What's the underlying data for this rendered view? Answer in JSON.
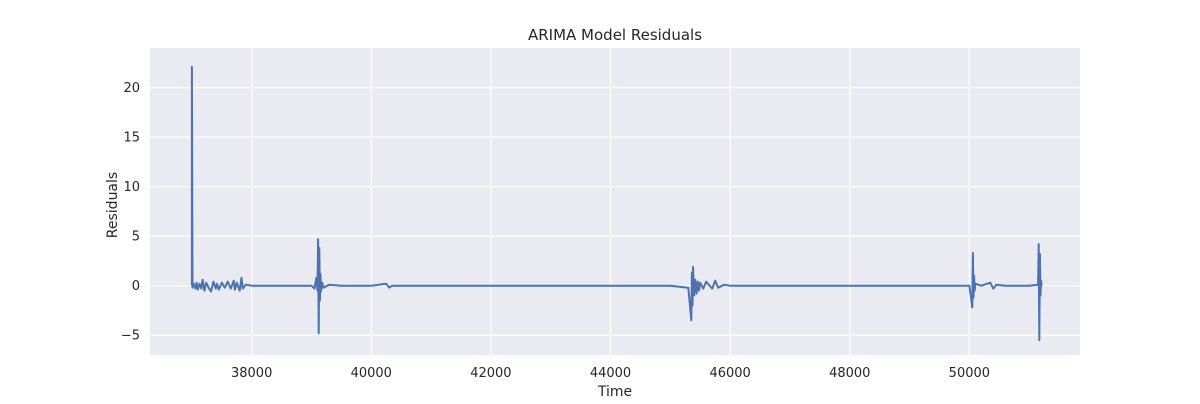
{
  "chart_data": {
    "type": "line",
    "title": "ARIMA Model Residuals",
    "xlabel": "Time",
    "ylabel": "Residuals",
    "xlim": [
      36300,
      51850
    ],
    "ylim": [
      -7,
      24
    ],
    "xticks": [
      38000,
      40000,
      42000,
      44000,
      46000,
      48000,
      50000
    ],
    "yticks": [
      -5,
      0,
      5,
      10,
      15,
      20
    ],
    "grid": true,
    "colors": {
      "background": "#eaeaf2",
      "grid": "#ffffff",
      "line": "#4c72b0"
    },
    "series": [
      {
        "x": [
          37000,
          37000,
          37010,
          37030,
          37060,
          37080,
          37100,
          37130,
          37160,
          37180,
          37210,
          37240,
          37280,
          37320,
          37360,
          37400,
          37420,
          37450,
          37500,
          37550,
          37600,
          37650,
          37700,
          37720,
          37750,
          37800,
          37830,
          37850,
          37900,
          38000,
          38500,
          39000,
          39050,
          39080,
          39100,
          39110,
          39120,
          39130,
          39140,
          39150,
          39160,
          39180,
          39200,
          39300,
          39500,
          40000,
          40250,
          40300,
          40350,
          41000,
          42000,
          43000,
          44000,
          45000,
          45300,
          45350,
          45360,
          45370,
          45380,
          45400,
          45420,
          45440,
          45460,
          45480,
          45500,
          45550,
          45600,
          45700,
          45750,
          45800,
          45900,
          46000,
          47000,
          48000,
          49000,
          50000,
          50050,
          50060,
          50070,
          50080,
          50090,
          50100,
          50200,
          50350,
          50400,
          50450,
          50600,
          51000,
          51150,
          51160,
          51170,
          51180,
          51190,
          51200,
          51210
        ],
        "y": [
          0,
          22.1,
          -0.2,
          0.2,
          -0.3,
          0.3,
          -0.4,
          0.2,
          -0.3,
          0.6,
          -0.5,
          0.3,
          -0.2,
          -0.6,
          0.4,
          -0.3,
          0.2,
          -0.4,
          0.3,
          -0.2,
          0.4,
          -0.3,
          0.5,
          -0.4,
          0.3,
          -0.5,
          0.8,
          -0.3,
          0.1,
          0,
          0,
          0,
          -0.3,
          0.8,
          -0.5,
          4.7,
          -4.8,
          3.8,
          -1.5,
          1.2,
          -0.6,
          0.3,
          -0.2,
          0.1,
          0,
          0,
          0.2,
          -0.2,
          0,
          0,
          0,
          0,
          0,
          0,
          -0.2,
          -3.5,
          1.3,
          -2.0,
          1.9,
          -1.0,
          0.6,
          -0.8,
          0.4,
          -0.5,
          0.3,
          -0.3,
          0.4,
          -0.3,
          0.5,
          -0.2,
          0.1,
          0,
          0,
          0,
          0,
          0,
          -2.2,
          3.3,
          -1.2,
          1.0,
          -0.5,
          0.2,
          0,
          0.3,
          -0.3,
          0.1,
          0,
          0,
          0.1,
          4.2,
          -5.5,
          3.2,
          -1.0,
          0.5,
          0
        ]
      }
    ]
  }
}
